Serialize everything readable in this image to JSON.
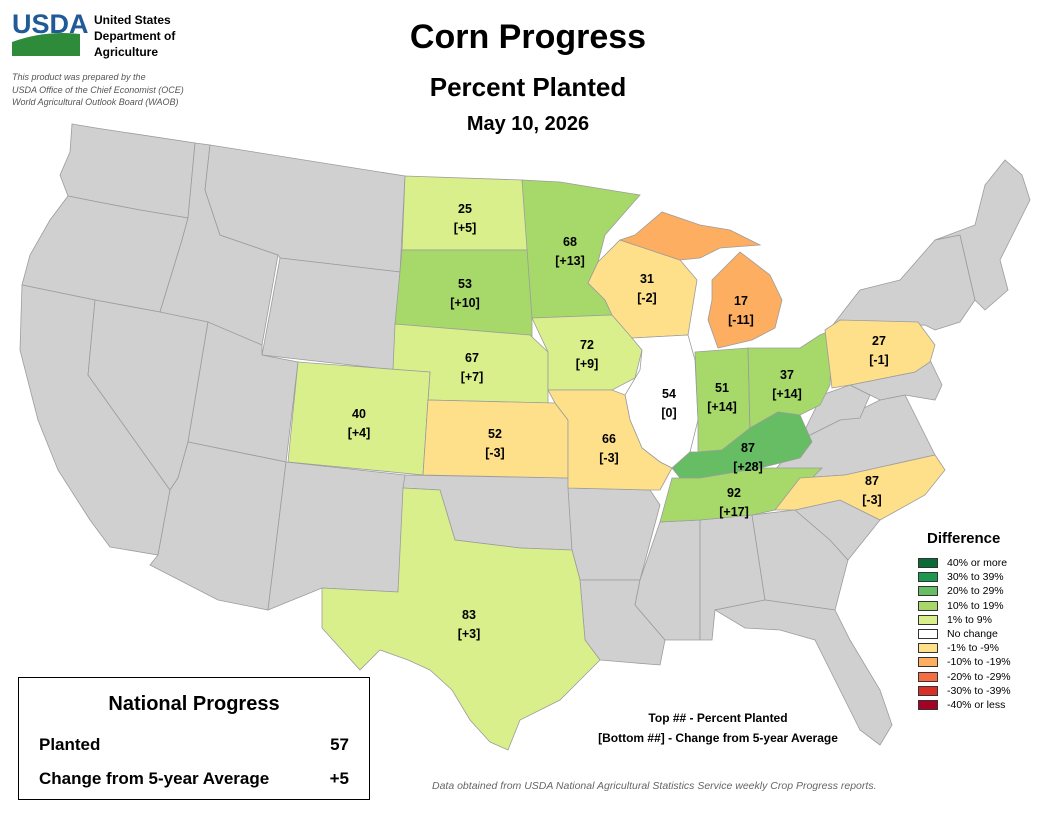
{
  "header": {
    "logo_text": "USDA",
    "agency_lines": [
      "United States",
      "Department of",
      "Agriculture"
    ],
    "prepared_lines": [
      "This product was prepared by the",
      "USDA Office of the Chief Economist (OCE)",
      "World Agricultural Outlook Board (WAOB)"
    ],
    "title": "Corn Progress",
    "subtitle": "Percent Planted",
    "date": "May 10, 2026"
  },
  "colors": {
    "no_data": "#d0d0d0",
    "border": "#9c9c9c",
    "water": "#ffffff",
    "logo_blue": "#205a97",
    "logo_green": "#2e8b3a"
  },
  "legend": {
    "title": "Difference",
    "items": [
      {
        "label": "40% or more",
        "color": "#0b6b37"
      },
      {
        "label": "30% to 39%",
        "color": "#1e9850"
      },
      {
        "label": "20% to 29%",
        "color": "#66bd63"
      },
      {
        "label": "10% to 19%",
        "color": "#a6d96a"
      },
      {
        "label": "1% to 9%",
        "color": "#d9ef8b"
      },
      {
        "label": "No change",
        "color": "#ffffff"
      },
      {
        "label": "-1% to -9%",
        "color": "#fee08b"
      },
      {
        "label": "-10% to -19%",
        "color": "#fdae61"
      },
      {
        "label": "-20% to -29%",
        "color": "#f46d43"
      },
      {
        "label": "-30% to -39%",
        "color": "#d73027"
      },
      {
        "label": "-40% or less",
        "color": "#a50026"
      }
    ]
  },
  "key_note": {
    "top": "Top ## - Percent Planted",
    "bottom": "[Bottom ##] - Change from 5-year Average"
  },
  "national": {
    "title": "National Progress",
    "planted_label": "Planted",
    "planted_value": "57",
    "change_label": "Change from 5-year Average",
    "change_value": "+5"
  },
  "footnote": "Data obtained from USDA National Agricultural Statistics Service weekly Crop Progress reports.",
  "states": [
    {
      "id": "ND",
      "planted": "25",
      "change": "[+5]",
      "category": "1% to 9%"
    },
    {
      "id": "SD",
      "planted": "53",
      "change": "[+10]",
      "category": "10% to 19%"
    },
    {
      "id": "MN",
      "planted": "68",
      "change": "[+13]",
      "category": "10% to 19%"
    },
    {
      "id": "NE",
      "planted": "67",
      "change": "[+7]",
      "category": "1% to 9%"
    },
    {
      "id": "IA",
      "planted": "72",
      "change": "[+9]",
      "category": "1% to 9%"
    },
    {
      "id": "WI",
      "planted": "31",
      "change": "[-2]",
      "category": "-1% to -9%"
    },
    {
      "id": "MI",
      "planted": "17",
      "change": "[-11]",
      "category": "-10% to -19%"
    },
    {
      "id": "IL",
      "planted": "54",
      "change": "[0]",
      "category": "No change"
    },
    {
      "id": "IN",
      "planted": "51",
      "change": "[+14]",
      "category": "10% to 19%"
    },
    {
      "id": "OH",
      "planted": "37",
      "change": "[+14]",
      "category": "10% to 19%"
    },
    {
      "id": "PA",
      "planted": "27",
      "change": "[-1]",
      "category": "-1% to -9%"
    },
    {
      "id": "CO",
      "planted": "40",
      "change": "[+4]",
      "category": "1% to 9%"
    },
    {
      "id": "KS",
      "planted": "52",
      "change": "[-3]",
      "category": "-1% to -9%"
    },
    {
      "id": "MO",
      "planted": "66",
      "change": "[-3]",
      "category": "-1% to -9%"
    },
    {
      "id": "KY",
      "planted": "87",
      "change": "[+28]",
      "category": "20% to 29%"
    },
    {
      "id": "TN",
      "planted": "92",
      "change": "[+17]",
      "category": "10% to 19%"
    },
    {
      "id": "NC",
      "planted": "87",
      "change": "[-3]",
      "category": "-1% to -9%"
    },
    {
      "id": "TX",
      "planted": "83",
      "change": "[+3]",
      "category": "1% to 9%"
    }
  ]
}
